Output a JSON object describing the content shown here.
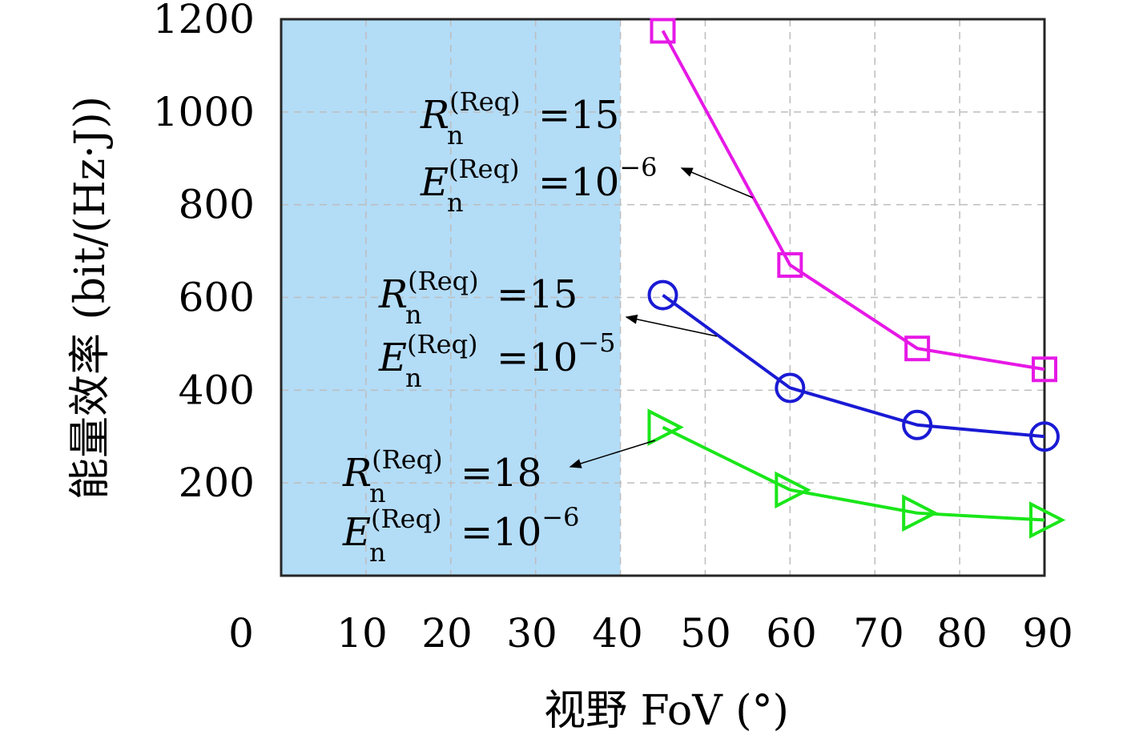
{
  "chart_data": {
    "type": "line",
    "xlabel": "视野 FoV (°)",
    "ylabel": "能量效率 (bit/(Hz·J))",
    "xlim": [
      0,
      90
    ],
    "ylim": [
      0,
      1200
    ],
    "x_ticks": [
      "0",
      "10",
      "20",
      "30",
      "40",
      "50",
      "60",
      "70",
      "80",
      "90"
    ],
    "y_ticks": [
      "200",
      "400",
      "600",
      "800",
      "1000",
      "1200"
    ],
    "grid": true,
    "shaded_region": {
      "x_from": 0,
      "x_to": 40,
      "color": "#b3dcf7"
    },
    "series": [
      {
        "marker": "square",
        "color": "#e619e6",
        "x": [
          45,
          60,
          75,
          90
        ],
        "y": [
          1175,
          670,
          490,
          445
        ]
      },
      {
        "marker": "circle",
        "color": "#1a1ad4",
        "x": [
          45,
          60,
          75,
          90
        ],
        "y": [
          605,
          405,
          325,
          300
        ]
      },
      {
        "marker": "triangle-right",
        "color": "#1ae61a",
        "x": [
          45,
          60,
          75,
          90
        ],
        "y": [
          320,
          185,
          135,
          120
        ]
      }
    ],
    "annotations": [
      {
        "R_base": "R",
        "R_sup": "(Req)",
        "R_sub": "n",
        "R_val": "=15",
        "E_base": "E",
        "E_sup": "(Req)",
        "E_sub": "n",
        "E_val": "=10",
        "E_exp": "−6"
      },
      {
        "R_base": "R",
        "R_sup": "(Req)",
        "R_sub": "n",
        "R_val": "=15",
        "E_base": "E",
        "E_sup": "(Req)",
        "E_sub": "n",
        "E_val": "=10",
        "E_exp": "−5"
      },
      {
        "R_base": "R",
        "R_sup": "(Req)",
        "R_sub": "n",
        "R_val": "=18",
        "E_base": "E",
        "E_sup": "(Req)",
        "E_sub": "n",
        "E_val": "=10",
        "E_exp": "−6"
      }
    ]
  }
}
